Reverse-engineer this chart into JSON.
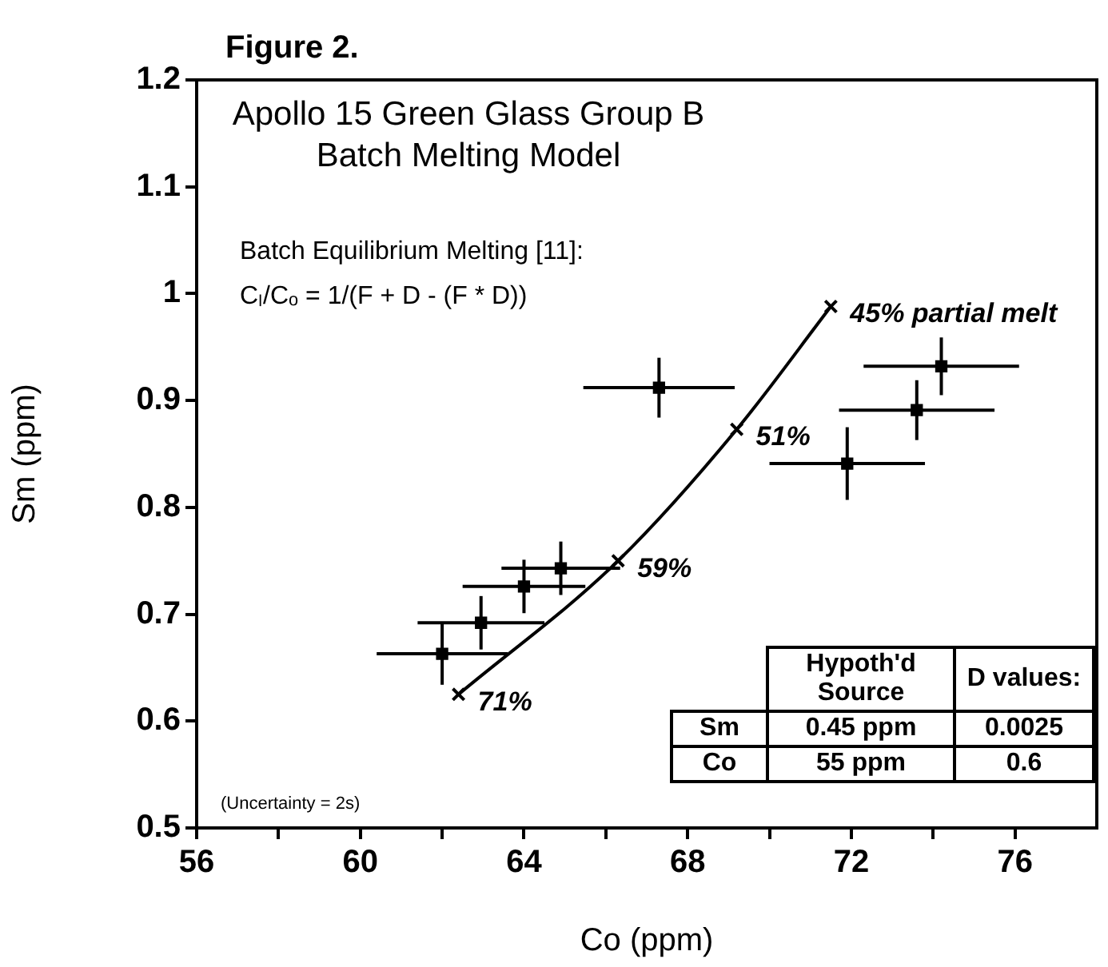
{
  "chart_data": {
    "type": "scatter",
    "title": "Figure 2.",
    "subtitle": "Apollo 15 Green Glass Group B\nBatch Melting Model",
    "xlabel": "Co (ppm)",
    "ylabel": "Sm (ppm)",
    "xlim": [
      56,
      78
    ],
    "xticks": [
      56,
      {
        "value": 58,
        "label": null
      },
      60,
      {
        "value": 62,
        "label": null
      },
      64,
      {
        "value": 66,
        "label": null
      },
      68,
      {
        "value": 70,
        "label": null
      },
      72,
      {
        "value": 74,
        "label": null
      },
      76
    ],
    "ylim": [
      0.5,
      1.2
    ],
    "yticks": [
      0.5,
      0.6,
      0.7,
      0.8,
      0.9,
      1,
      1.1,
      1.2
    ],
    "grid": false,
    "legend": false,
    "series": [
      {
        "type": "scatter",
        "color": "#000000",
        "marker": "square",
        "x": [
          67.3,
          74.2,
          73.6,
          71.9,
          64.9,
          64.0,
          62.95,
          62.0
        ],
        "values": [
          0.912,
          0.932,
          0.891,
          0.841,
          0.743,
          0.726,
          0.692,
          0.663
        ],
        "errors": [
          0.028,
          0.027,
          0.028,
          0.034,
          0.025,
          0.025,
          0.025,
          0.029
        ],
        "xerrors": [
          1.85,
          1.9,
          1.9,
          1.9,
          1.45,
          1.5,
          1.55,
          1.6
        ]
      },
      {
        "type": "line",
        "color": "#000000",
        "marker": "cross",
        "x": [
          62.4,
          66.3,
          69.2,
          71.5
        ],
        "values": [
          0.625,
          0.75,
          0.873,
          0.988
        ]
      }
    ],
    "annotations": [
      {
        "text": "71%",
        "x": 62.4,
        "y": 0.625
      },
      {
        "text": "59%",
        "x": 66.3,
        "y": 0.75
      },
      {
        "text": "51%",
        "x": 69.2,
        "y": 0.873
      },
      {
        "text": "45% partial melt",
        "x": 71.5,
        "y": 0.988
      },
      "Batch Equilibrium Melting [11]:",
      "Cₗ/Cₒ = 1/(F + D - (F * D))",
      "(Uncertainty = 2s)",
      "Hypoth'd Source",
      "D values:",
      "Sm",
      "0.45 ppm",
      "0.0025",
      "Co",
      "55 ppm",
      "0.6"
    ]
  }
}
